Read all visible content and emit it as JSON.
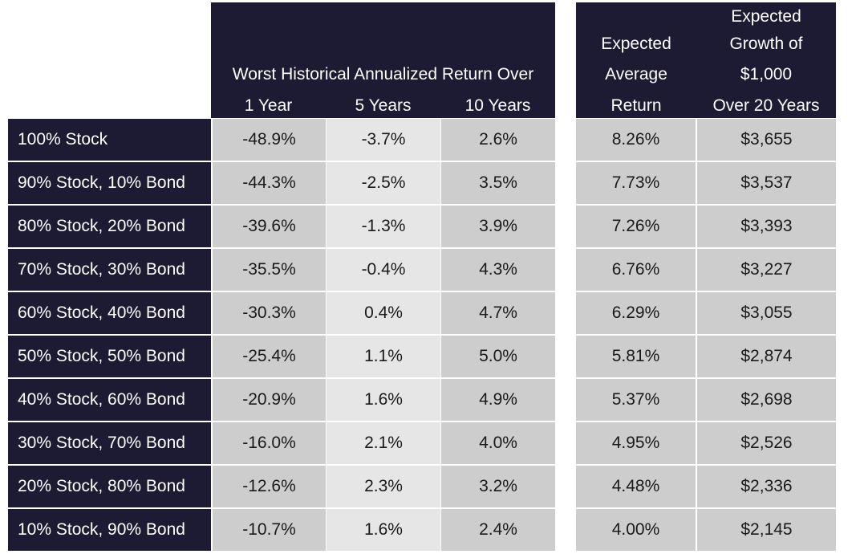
{
  "table": {
    "header": {
      "group_label": "Worst Historical Annualized Return Over",
      "periods": [
        "1 Year",
        "5 Years",
        "10 Years"
      ],
      "expected_return": [
        "Expected",
        "Average",
        "Return"
      ],
      "expected_growth": [
        "Expected",
        "Growth of",
        "$1,000",
        "Over 20 Years"
      ]
    },
    "rows": [
      {
        "label": "100% Stock",
        "y1": "-48.9%",
        "y5": "-3.7%",
        "y10": "2.6%",
        "ret": "8.26%",
        "growth": "$3,655"
      },
      {
        "label": "90% Stock, 10% Bond",
        "y1": "-44.3%",
        "y5": "-2.5%",
        "y10": "3.5%",
        "ret": "7.73%",
        "growth": "$3,537"
      },
      {
        "label": "80% Stock, 20% Bond",
        "y1": "-39.6%",
        "y5": "-1.3%",
        "y10": "3.9%",
        "ret": "7.26%",
        "growth": "$3,393"
      },
      {
        "label": "70% Stock, 30% Bond",
        "y1": "-35.5%",
        "y5": "-0.4%",
        "y10": "4.3%",
        "ret": "6.76%",
        "growth": "$3,227"
      },
      {
        "label": "60% Stock, 40% Bond",
        "y1": "-30.3%",
        "y5": "0.4%",
        "y10": "4.7%",
        "ret": "6.29%",
        "growth": "$3,055"
      },
      {
        "label": "50% Stock, 50% Bond",
        "y1": "-25.4%",
        "y5": "1.1%",
        "y10": "5.0%",
        "ret": "5.81%",
        "growth": "$2,874"
      },
      {
        "label": "40% Stock, 60% Bond",
        "y1": "-20.9%",
        "y5": "1.6%",
        "y10": "4.9%",
        "ret": "5.37%",
        "growth": "$2,698"
      },
      {
        "label": "30% Stock, 70% Bond",
        "y1": "-16.0%",
        "y5": "2.1%",
        "y10": "4.0%",
        "ret": "4.95%",
        "growth": "$2,526"
      },
      {
        "label": "20% Stock, 80% Bond",
        "y1": "-12.6%",
        "y5": "2.3%",
        "y10": "3.2%",
        "ret": "4.48%",
        "growth": "$2,336"
      },
      {
        "label": "10% Stock, 90% Bond",
        "y1": "-10.7%",
        "y5": "1.6%",
        "y10": "2.4%",
        "ret": "4.00%",
        "growth": "$2,145"
      }
    ]
  }
}
